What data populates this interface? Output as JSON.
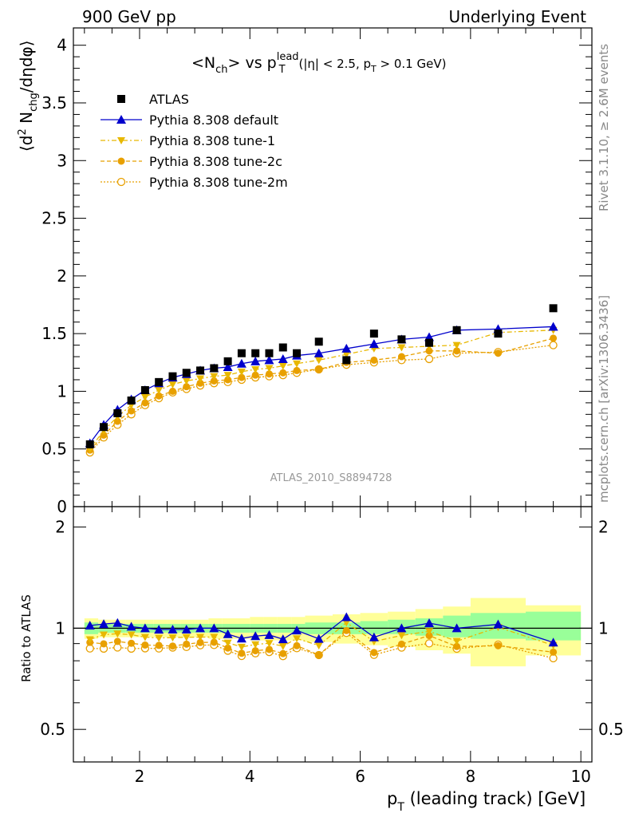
{
  "header": {
    "left": "900 GeV pp",
    "right": "Underlying Event"
  },
  "side_labels": {
    "rivet": "Rivet 3.1.10, ≥ 2.6M events",
    "mcplots": "mcplots.cern.ch [arXiv:1306.3436]"
  },
  "analysis_id": "ATLAS_2010_S8894728",
  "chart_data": {
    "type": "scatter",
    "title": "<N_ch> vs p_T^lead (|η| < 2.5, p_T > 0.1 GeV)",
    "xlabel": "p_T (leading track) [GeV]",
    "ylabel": "⟨d² N_chg/dηdφ⟩",
    "ratio_ylabel": "Ratio to ATLAS",
    "xlim": [
      0.8,
      10.2
    ],
    "ylim": [
      0,
      4.15
    ],
    "ratio_ylim": [
      0.4,
      2.3
    ],
    "ratio_log_scale": true,
    "x_ticks": [
      2,
      4,
      6,
      8,
      10
    ],
    "y_ticks": [
      0,
      0.5,
      1,
      1.5,
      2,
      2.5,
      3,
      3.5,
      4
    ],
    "ratio_ticks": [
      0.5,
      1,
      2
    ],
    "legend_position": "top-left",
    "x": [
      1.1,
      1.35,
      1.6,
      1.85,
      2.1,
      2.35,
      2.6,
      2.85,
      3.1,
      3.35,
      3.6,
      3.85,
      4.1,
      4.35,
      4.6,
      4.85,
      5.25,
      5.75,
      6.25,
      6.75,
      7.25,
      7.75,
      8.5,
      9.5
    ],
    "series": [
      {
        "name": "ATLAS",
        "color": "#000000",
        "values": [
          0.54,
          0.69,
          0.81,
          0.92,
          1.01,
          1.08,
          1.13,
          1.16,
          1.18,
          1.2,
          1.26,
          1.33,
          1.33,
          1.33,
          1.38,
          1.33,
          1.43,
          1.27,
          1.5,
          1.45,
          1.42,
          1.53,
          1.5,
          1.72
        ]
      },
      {
        "name": "Pythia 8.308 default",
        "color": "#0000cc",
        "values": [
          0.55,
          0.71,
          0.84,
          0.93,
          1.01,
          1.07,
          1.12,
          1.15,
          1.18,
          1.2,
          1.21,
          1.24,
          1.26,
          1.27,
          1.28,
          1.31,
          1.33,
          1.37,
          1.41,
          1.45,
          1.47,
          1.53,
          1.54,
          1.56
        ]
      },
      {
        "name": "Pythia 8.308 tune-1",
        "color": "#e8b800",
        "values": [
          0.5,
          0.66,
          0.78,
          0.88,
          0.95,
          1.01,
          1.06,
          1.09,
          1.11,
          1.13,
          1.14,
          1.17,
          1.19,
          1.2,
          1.22,
          1.24,
          1.27,
          1.32,
          1.37,
          1.38,
          1.39,
          1.4,
          1.51,
          1.53
        ]
      },
      {
        "name": "Pythia 8.308 tune-2c",
        "color": "#e8a000",
        "values": [
          0.49,
          0.62,
          0.74,
          0.83,
          0.9,
          0.96,
          1.0,
          1.04,
          1.07,
          1.09,
          1.1,
          1.12,
          1.14,
          1.15,
          1.16,
          1.18,
          1.19,
          1.25,
          1.27,
          1.3,
          1.35,
          1.35,
          1.33,
          1.46
        ]
      },
      {
        "name": "Pythia 8.308 tune-2m",
        "color": "#e8a000",
        "values": [
          0.47,
          0.6,
          0.71,
          0.8,
          0.88,
          0.94,
          0.99,
          1.02,
          1.05,
          1.07,
          1.08,
          1.1,
          1.12,
          1.13,
          1.14,
          1.16,
          1.19,
          1.23,
          1.25,
          1.27,
          1.28,
          1.33,
          1.34,
          1.4
        ]
      }
    ],
    "ratio_bands": {
      "x_edges": [
        1.0,
        1.25,
        1.5,
        1.75,
        2.0,
        2.25,
        2.5,
        2.75,
        3.0,
        3.25,
        3.5,
        3.75,
        4.0,
        4.25,
        4.5,
        4.75,
        5.0,
        5.5,
        6.0,
        6.5,
        7.0,
        7.5,
        8.0,
        9.0,
        10.0
      ],
      "inner_low": [
        0.96,
        0.97,
        0.97,
        0.97,
        0.97,
        0.97,
        0.97,
        0.97,
        0.97,
        0.97,
        0.97,
        0.97,
        0.97,
        0.97,
        0.97,
        0.97,
        0.96,
        0.96,
        0.96,
        0.96,
        0.95,
        0.94,
        0.93,
        0.92
      ],
      "inner_high": [
        1.04,
        1.03,
        1.03,
        1.03,
        1.03,
        1.03,
        1.03,
        1.03,
        1.03,
        1.03,
        1.03,
        1.03,
        1.03,
        1.03,
        1.03,
        1.03,
        1.04,
        1.04,
        1.05,
        1.06,
        1.07,
        1.09,
        1.11,
        1.12
      ],
      "outer_low": [
        0.93,
        0.94,
        0.94,
        0.94,
        0.94,
        0.94,
        0.94,
        0.94,
        0.94,
        0.93,
        0.93,
        0.93,
        0.92,
        0.92,
        0.92,
        0.92,
        0.91,
        0.9,
        0.89,
        0.88,
        0.86,
        0.84,
        0.77,
        0.83
      ],
      "outer_high": [
        1.07,
        1.06,
        1.06,
        1.06,
        1.06,
        1.06,
        1.06,
        1.06,
        1.06,
        1.07,
        1.07,
        1.07,
        1.08,
        1.08,
        1.08,
        1.08,
        1.09,
        1.1,
        1.11,
        1.12,
        1.14,
        1.16,
        1.23,
        1.17
      ],
      "inner_color": "#99ff99",
      "outer_color": "#ffff99"
    }
  }
}
